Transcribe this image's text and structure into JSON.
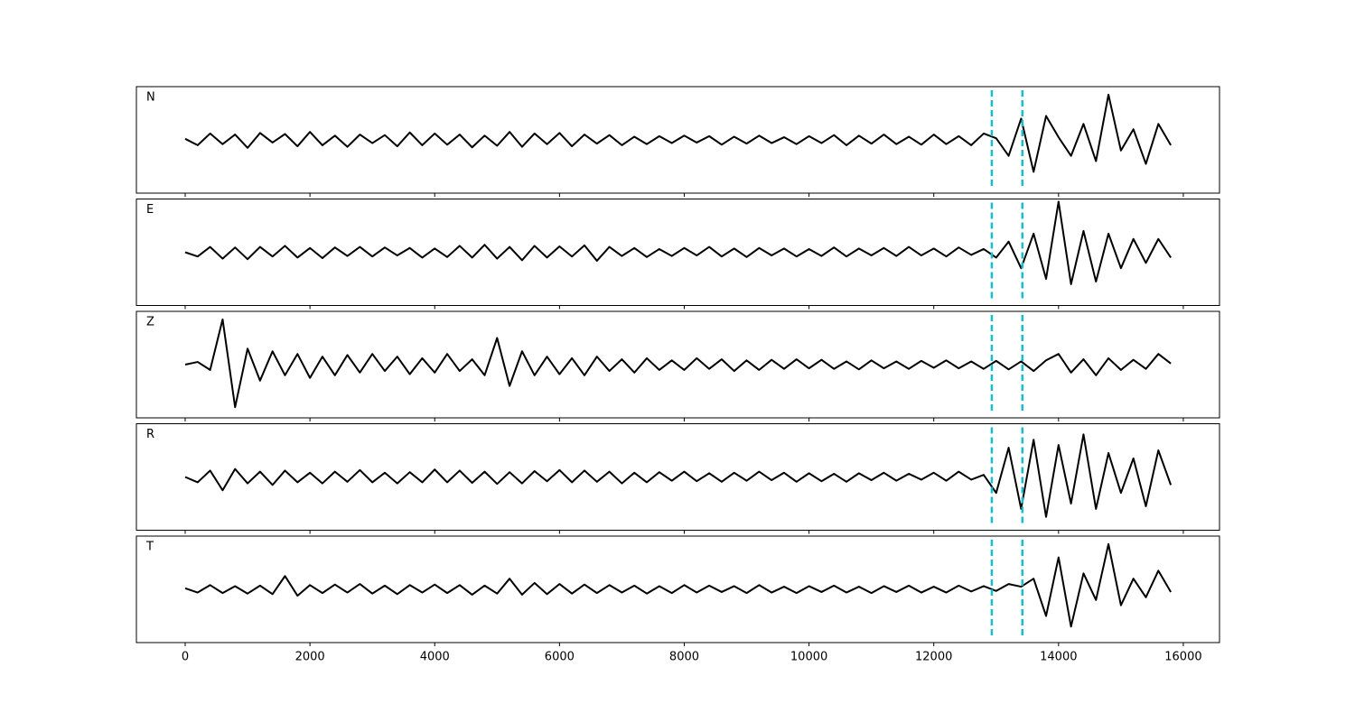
{
  "chart_data": {
    "type": "line",
    "x": [
      0,
      200,
      400,
      600,
      800,
      1000,
      1200,
      1400,
      1600,
      1800,
      2000,
      2200,
      2400,
      2600,
      2800,
      3000,
      3200,
      3400,
      3600,
      3800,
      4000,
      4200,
      4400,
      4600,
      4800,
      5000,
      5200,
      5400,
      5600,
      5800,
      6000,
      6200,
      6400,
      6600,
      6800,
      7000,
      7200,
      7400,
      7600,
      7800,
      8000,
      8200,
      8400,
      8600,
      8800,
      9000,
      9200,
      9400,
      9600,
      9800,
      10000,
      10200,
      10400,
      10600,
      10800,
      11000,
      11200,
      11400,
      11600,
      11800,
      12000,
      12200,
      12400,
      12600,
      12800,
      13000,
      13200,
      13400,
      13600,
      13800,
      14000,
      14200,
      14400,
      14600,
      14800,
      15000,
      15200,
      15400,
      15600,
      15800
    ],
    "series": [
      {
        "name": "N",
        "color": "#000000",
        "values": [
          0.02,
          -0.1,
          0.12,
          -0.08,
          0.1,
          -0.15,
          0.13,
          -0.05,
          0.11,
          -0.12,
          0.15,
          -0.1,
          0.08,
          -0.13,
          0.1,
          -0.06,
          0.09,
          -0.12,
          0.14,
          -0.1,
          0.12,
          -0.09,
          0.1,
          -0.14,
          0.08,
          -0.11,
          0.15,
          -0.13,
          0.12,
          -0.08,
          0.13,
          -0.12,
          0.1,
          -0.07,
          0.09,
          -0.1,
          0.06,
          -0.08,
          0.07,
          -0.06,
          0.08,
          -0.05,
          0.07,
          -0.09,
          0.06,
          -0.07,
          0.08,
          -0.06,
          0.05,
          -0.08,
          0.07,
          -0.06,
          0.09,
          -0.1,
          0.08,
          -0.07,
          0.1,
          -0.08,
          0.06,
          -0.09,
          0.1,
          -0.08,
          0.07,
          -0.1,
          0.12,
          0.03,
          -0.3,
          0.4,
          -0.6,
          0.45,
          0.05,
          -0.3,
          0.3,
          -0.4,
          0.85,
          -0.2,
          0.2,
          -0.45,
          0.3,
          -0.1
        ]
      },
      {
        "name": "E",
        "color": "#000000",
        "values": [
          0.0,
          -0.08,
          0.1,
          -0.12,
          0.09,
          -0.13,
          0.1,
          -0.08,
          0.12,
          -0.1,
          0.08,
          -0.11,
          0.09,
          -0.07,
          0.1,
          -0.08,
          0.09,
          -0.06,
          0.08,
          -0.1,
          0.07,
          -0.09,
          0.12,
          -0.1,
          0.14,
          -0.12,
          0.1,
          -0.15,
          0.12,
          -0.1,
          0.11,
          -0.08,
          0.13,
          -0.16,
          0.1,
          -0.07,
          0.08,
          -0.09,
          0.06,
          -0.07,
          0.08,
          -0.06,
          0.1,
          -0.08,
          0.07,
          -0.09,
          0.08,
          -0.06,
          0.07,
          -0.08,
          0.06,
          -0.07,
          0.09,
          -0.08,
          0.07,
          -0.06,
          0.08,
          -0.07,
          0.1,
          -0.06,
          0.07,
          -0.08,
          0.09,
          -0.05,
          0.06,
          -0.1,
          0.2,
          -0.3,
          0.35,
          -0.5,
          0.95,
          -0.6,
          0.4,
          -0.55,
          0.35,
          -0.3,
          0.25,
          -0.2,
          0.25,
          -0.1
        ]
      },
      {
        "name": "Z",
        "color": "#000000",
        "values": [
          0.0,
          0.05,
          -0.1,
          0.85,
          -0.8,
          0.3,
          -0.3,
          0.25,
          -0.2,
          0.2,
          -0.25,
          0.15,
          -0.2,
          0.18,
          -0.15,
          0.2,
          -0.12,
          0.15,
          -0.18,
          0.12,
          -0.15,
          0.2,
          -0.12,
          0.1,
          -0.2,
          0.5,
          -0.4,
          0.25,
          -0.2,
          0.15,
          -0.18,
          0.12,
          -0.2,
          0.15,
          -0.12,
          0.1,
          -0.15,
          0.12,
          -0.1,
          0.08,
          -0.1,
          0.12,
          -0.08,
          0.1,
          -0.12,
          0.08,
          -0.1,
          0.09,
          -0.08,
          0.1,
          -0.07,
          0.09,
          -0.08,
          0.06,
          -0.09,
          0.08,
          -0.07,
          0.06,
          -0.08,
          0.07,
          -0.06,
          0.08,
          -0.07,
          0.06,
          -0.08,
          0.07,
          -0.09,
          0.06,
          -0.12,
          0.08,
          0.2,
          -0.15,
          0.1,
          -0.2,
          0.12,
          -0.1,
          0.09,
          -0.08,
          0.2,
          0.02
        ]
      },
      {
        "name": "R",
        "color": "#000000",
        "values": [
          0.0,
          -0.1,
          0.12,
          -0.25,
          0.15,
          -0.12,
          0.1,
          -0.15,
          0.12,
          -0.1,
          0.08,
          -0.12,
          0.1,
          -0.09,
          0.13,
          -0.1,
          0.08,
          -0.12,
          0.09,
          -0.1,
          0.14,
          -0.1,
          0.12,
          -0.11,
          0.1,
          -0.13,
          0.09,
          -0.12,
          0.11,
          -0.08,
          0.13,
          -0.1,
          0.12,
          -0.09,
          0.1,
          -0.12,
          0.08,
          -0.1,
          0.09,
          -0.07,
          0.1,
          -0.08,
          0.07,
          -0.09,
          0.08,
          -0.07,
          0.1,
          -0.06,
          0.08,
          -0.09,
          0.07,
          -0.08,
          0.06,
          -0.09,
          0.07,
          -0.06,
          0.08,
          -0.07,
          0.06,
          -0.05,
          0.08,
          -0.07,
          0.1,
          -0.05,
          0.04,
          -0.3,
          0.55,
          -0.6,
          0.7,
          -0.75,
          0.6,
          -0.5,
          0.8,
          -0.6,
          0.45,
          -0.3,
          0.35,
          -0.55,
          0.5,
          -0.15
        ]
      },
      {
        "name": "T",
        "color": "#000000",
        "values": [
          0.02,
          -0.06,
          0.08,
          -0.07,
          0.06,
          -0.08,
          0.07,
          -0.09,
          0.25,
          -0.12,
          0.08,
          -0.07,
          0.09,
          -0.06,
          0.1,
          -0.08,
          0.07,
          -0.09,
          0.08,
          -0.06,
          0.09,
          -0.07,
          0.08,
          -0.1,
          0.07,
          -0.08,
          0.2,
          -0.1,
          0.12,
          -0.09,
          0.1,
          -0.08,
          0.09,
          -0.07,
          0.08,
          -0.06,
          0.07,
          -0.08,
          0.06,
          -0.07,
          0.08,
          -0.06,
          0.07,
          -0.05,
          0.06,
          -0.07,
          0.08,
          -0.06,
          0.05,
          -0.07,
          0.06,
          -0.05,
          0.07,
          -0.06,
          0.05,
          -0.07,
          0.06,
          -0.05,
          0.07,
          -0.06,
          0.05,
          -0.06,
          0.07,
          -0.04,
          0.06,
          -0.03,
          0.1,
          0.05,
          0.2,
          -0.5,
          0.6,
          -0.7,
          0.3,
          -0.2,
          0.85,
          -0.3,
          0.2,
          -0.15,
          0.35,
          -0.05
        ]
      }
    ],
    "xlim": [
      -782,
      16580
    ],
    "ylim": [
      -1,
      1
    ],
    "xticks": [
      0,
      2000,
      4000,
      6000,
      8000,
      10000,
      12000,
      14000,
      16000
    ],
    "vlines": [
      12930,
      13420
    ],
    "vline_color": "#17becf"
  }
}
